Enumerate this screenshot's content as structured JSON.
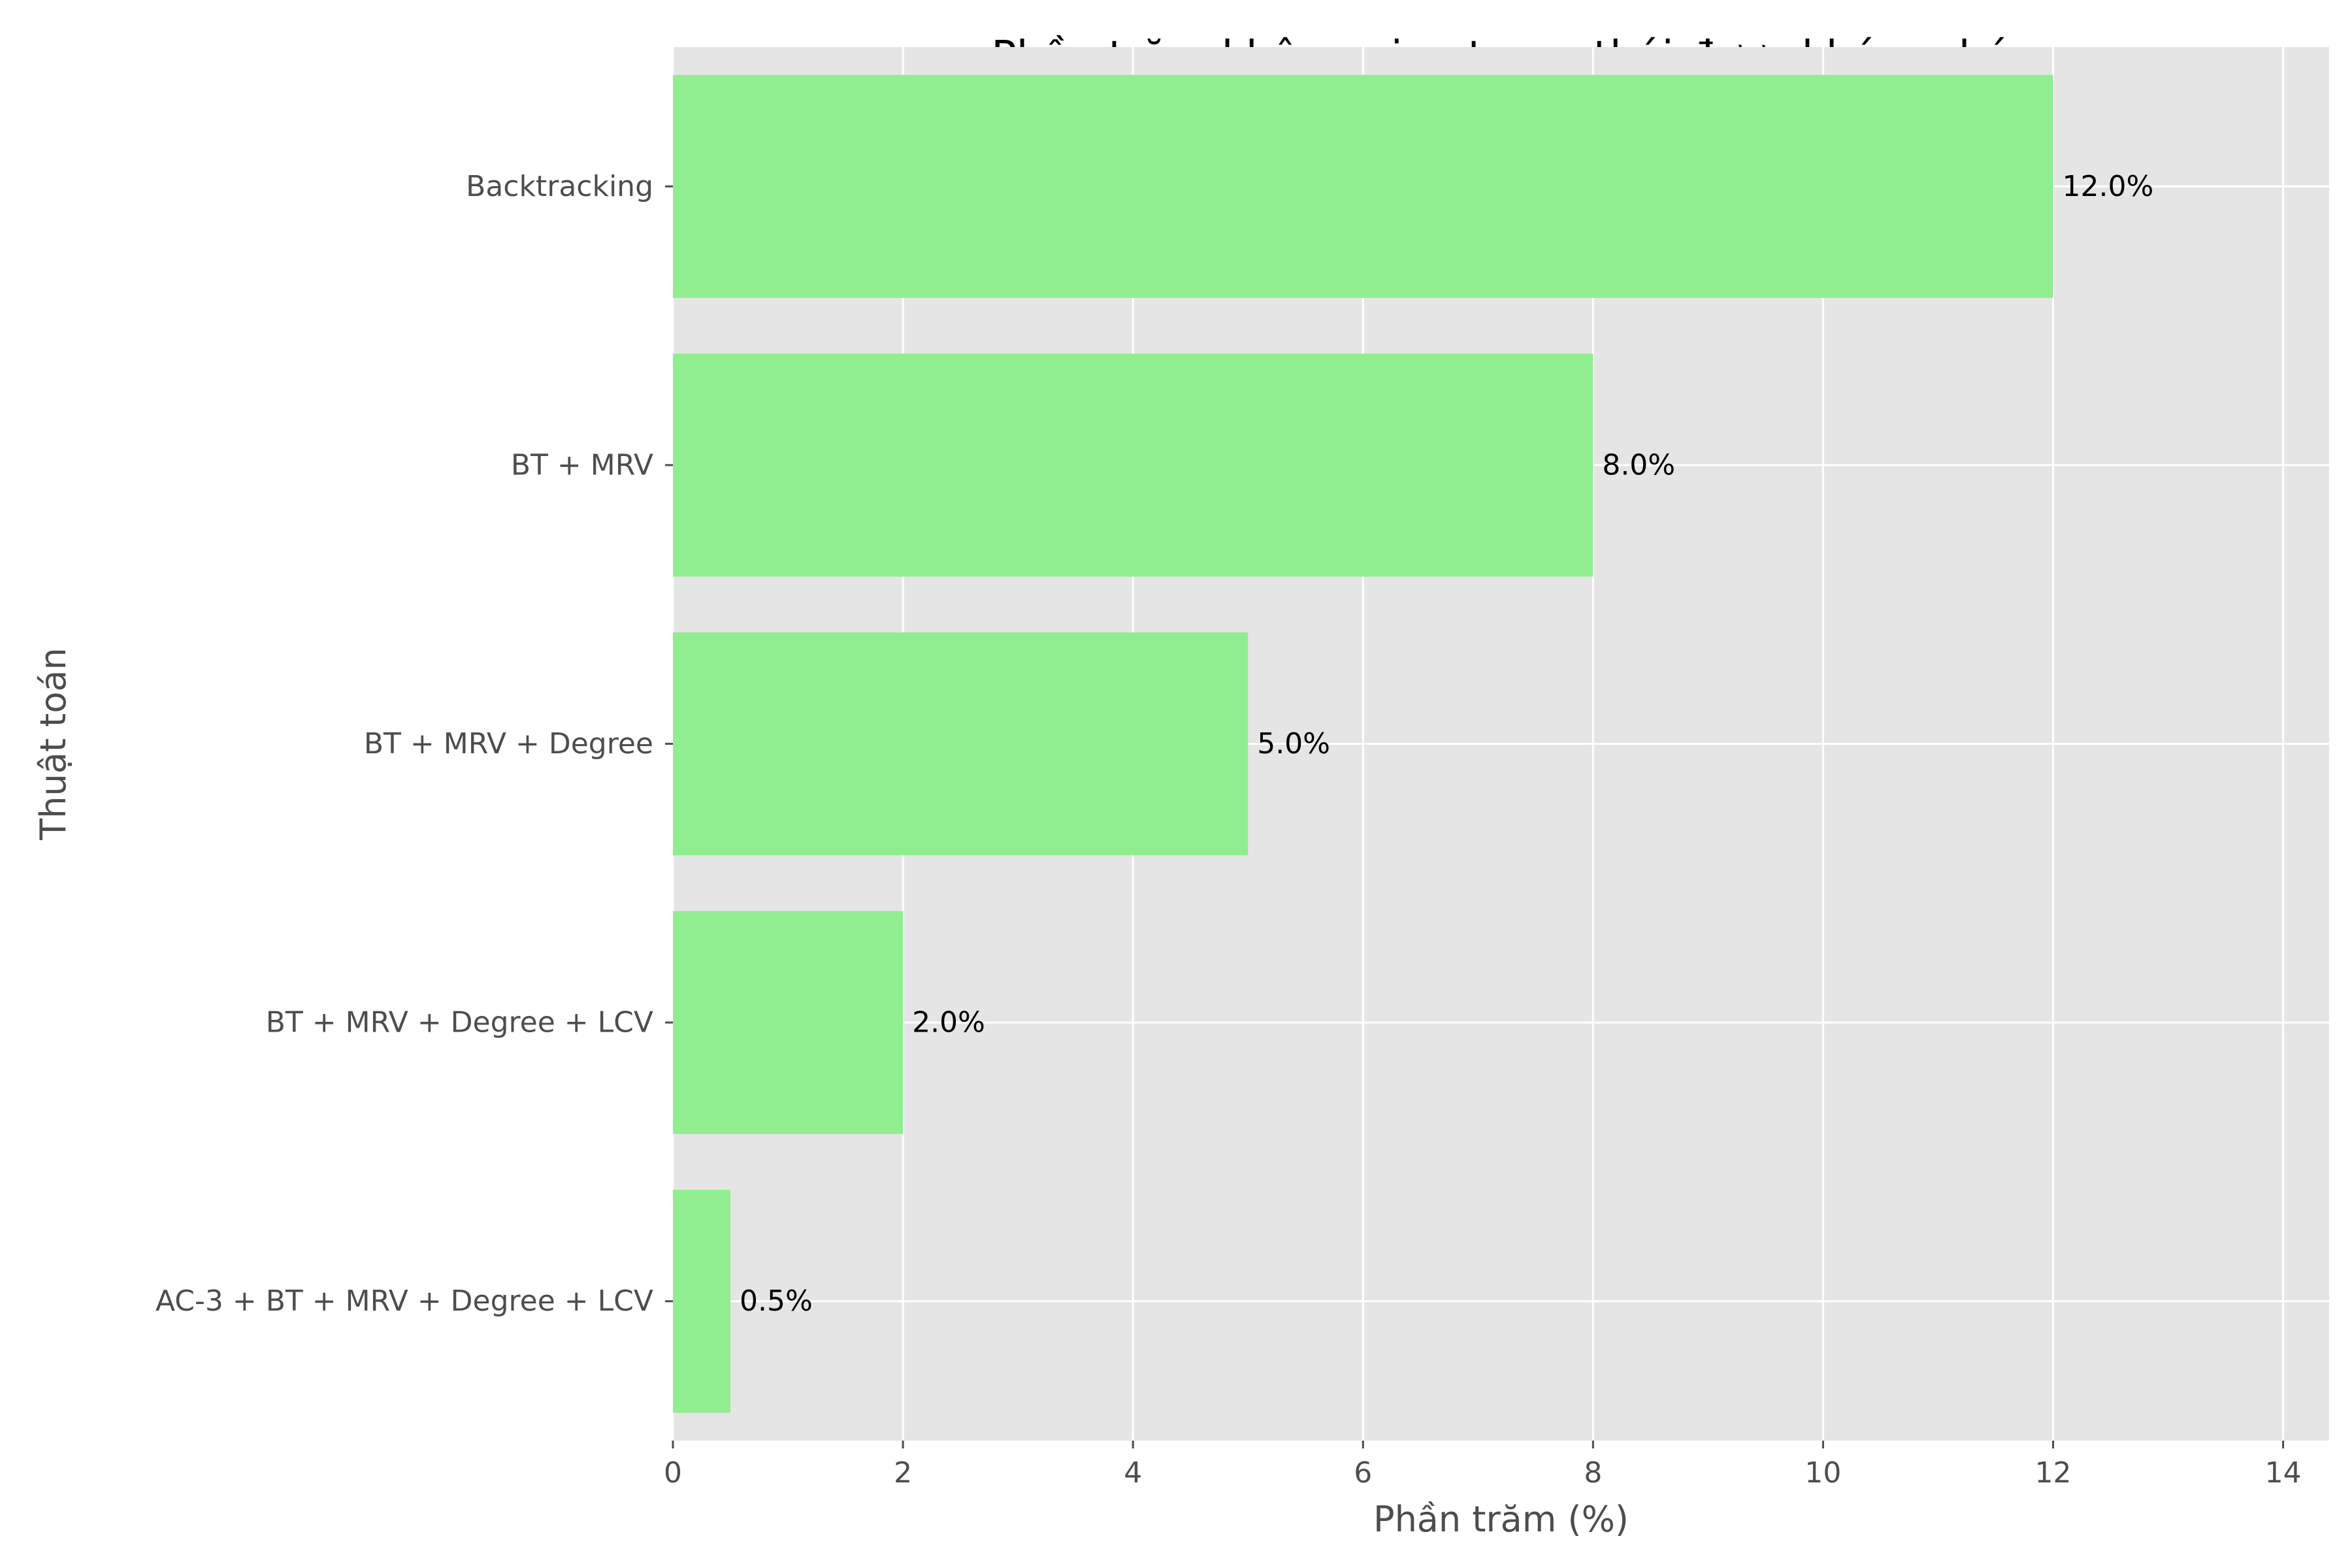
{
  "chart_data": {
    "type": "bar",
    "orientation": "horizontal",
    "title": "Phần trăm không gian trạng thái được khám phá",
    "xlabel": "Phần trăm (%)",
    "ylabel": "Thuật toán",
    "categories": [
      "Backtracking",
      "BT + MRV",
      "BT + MRV + Degree",
      "BT + MRV + Degree + LCV",
      "AC-3 + BT + MRV + Degree + LCV"
    ],
    "values": [
      12.0,
      8.0,
      5.0,
      2.0,
      0.5
    ],
    "data_labels": [
      "12.0%",
      "8.0%",
      "5.0%",
      "2.0%",
      "0.5%"
    ],
    "xlim": [
      0,
      14.4
    ],
    "xticks": [
      0,
      2,
      4,
      6,
      8,
      10,
      12,
      14
    ],
    "grid": true,
    "legend": "none",
    "colors": {
      "bar": "#90ee90",
      "plot_background": "#e5e5e5",
      "grid": "#ffffff",
      "tick_text": "#4d4d4d",
      "title_text": "#000000"
    }
  }
}
